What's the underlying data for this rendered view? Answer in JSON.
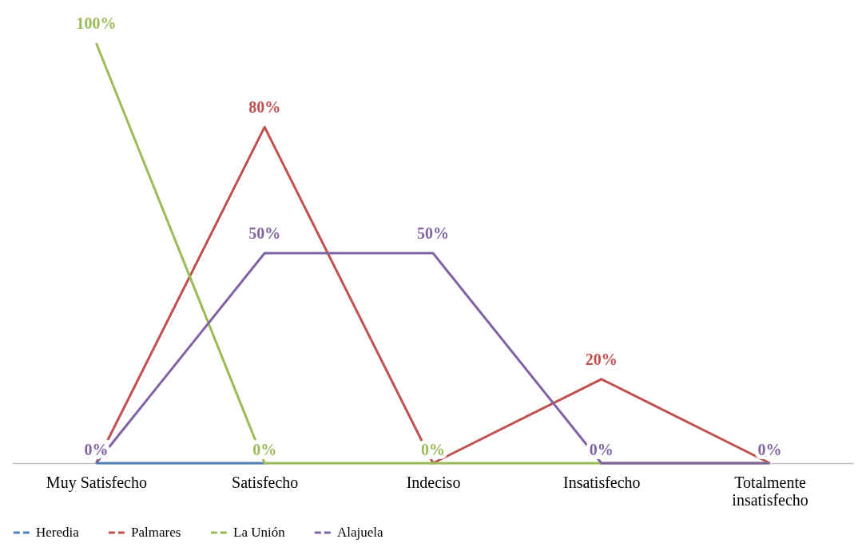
{
  "chart_data": {
    "type": "line",
    "categories": [
      "Muy Satisfecho",
      "Satisfecho",
      "Indeciso",
      "Insatisfecho",
      "Totalmente insatisfecho"
    ],
    "series": [
      {
        "name": "Heredia",
        "color": "#4f81bd",
        "values": [
          0,
          0,
          null,
          null,
          null
        ],
        "value_labels": [
          null,
          null,
          null,
          null,
          null
        ]
      },
      {
        "name": "Palmares",
        "color": "#c0504d",
        "values": [
          0,
          80,
          0,
          20,
          0
        ],
        "value_labels": [
          null,
          "80%",
          null,
          "20%",
          null
        ]
      },
      {
        "name": "La Unión",
        "color": "#9bbb59",
        "values": [
          100,
          0,
          0,
          0,
          0
        ],
        "value_labels": [
          "100%",
          "0%",
          "0%",
          null,
          null
        ]
      },
      {
        "name": "Alajuela",
        "color": "#8064a2",
        "values": [
          0,
          50,
          50,
          0,
          0
        ],
        "value_labels": [
          "0%",
          "50%",
          "50%",
          "0%",
          "0%"
        ]
      }
    ],
    "tick_labels": "x",
    "legend": "bottom",
    "line_style": "solid"
  }
}
